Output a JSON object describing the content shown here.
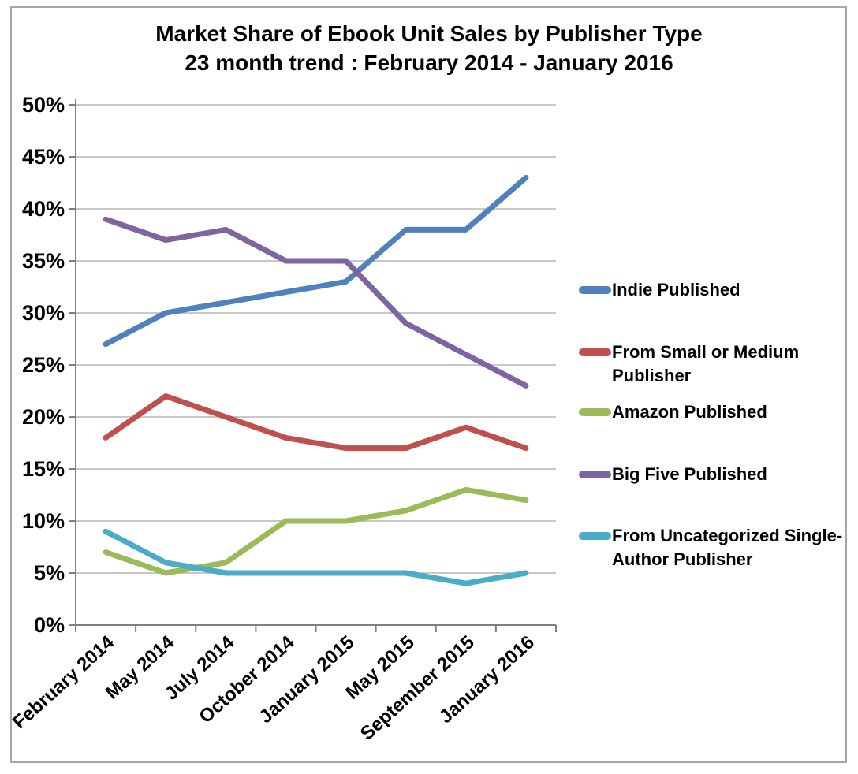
{
  "chart_data": {
    "type": "line",
    "title": "Market Share of Ebook Unit Sales by Publisher Type",
    "subtitle": "23 month trend : February 2014 - January 2016",
    "categories": [
      "February 2014",
      "May 2014",
      "July 2014",
      "October 2014",
      "January 2015",
      "May 2015",
      "September 2015",
      "January 2016"
    ],
    "series": [
      {
        "name": "Indie Published",
        "color": "#4F81BD",
        "values": [
          27,
          30,
          31,
          32,
          33,
          38,
          38,
          43
        ]
      },
      {
        "name": "From Small or Medium Publisher",
        "color": "#C0504D",
        "values": [
          18,
          22,
          20,
          18,
          17,
          17,
          19,
          17
        ]
      },
      {
        "name": "Amazon Published",
        "color": "#9BBB59",
        "values": [
          7,
          5,
          6,
          10,
          10,
          11,
          13,
          12
        ]
      },
      {
        "name": "Big Five Published",
        "color": "#8064A2",
        "values": [
          39,
          37,
          38,
          35,
          35,
          29,
          26,
          23
        ]
      },
      {
        "name": "From Uncategorized Single-Author Publisher",
        "color": "#4BACC6",
        "values": [
          9,
          6,
          5,
          5,
          5,
          5,
          4,
          5
        ]
      }
    ],
    "ylim": [
      0,
      50
    ],
    "ytick_step": 5,
    "ytick_labels": [
      "0%",
      "5%",
      "10%",
      "15%",
      "20%",
      "25%",
      "30%",
      "35%",
      "40%",
      "45%",
      "50%"
    ],
    "grid": true,
    "legend_position": "right",
    "grid_color": "#A6A6A6",
    "axis_color": "#808080",
    "border_color": "#A6A6A6",
    "text_color": "#000000"
  }
}
